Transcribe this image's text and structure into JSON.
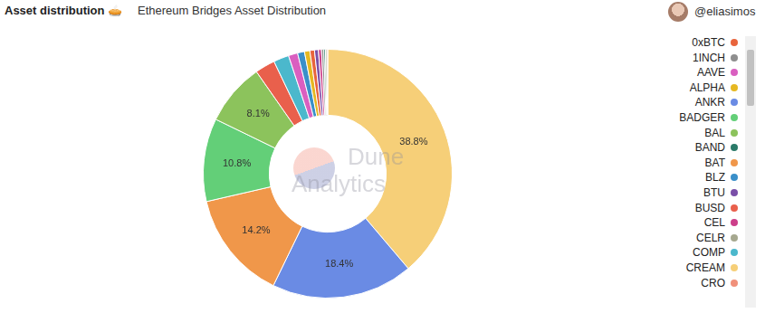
{
  "header": {
    "title": "Asset distribution 🥧",
    "subtitle": "Ethereum Bridges Asset Distribution",
    "author": "@eliasimos"
  },
  "chart_data": {
    "type": "doughnut",
    "annotation": "Dune Analytics",
    "categories": [
      "CREAM",
      "ANKR",
      "BAT",
      "BADGER",
      "BAL",
      "BUSD",
      "COMP",
      "AAVE",
      "BLZ",
      "ALPHA",
      "0xBTC",
      "BTU",
      "CEL",
      "1INCH",
      "BAND",
      "CELR",
      "CRO"
    ],
    "values": [
      38.8,
      18.4,
      14.2,
      10.8,
      8.1,
      2.6,
      2.0,
      1.2,
      0.9,
      0.7,
      0.6,
      0.5,
      0.4,
      0.3,
      0.2,
      0.2,
      0.1
    ],
    "colors": [
      "#f6cf78",
      "#6a8be4",
      "#f0974a",
      "#63cf78",
      "#8cc35c",
      "#e9604c",
      "#4bb8cc",
      "#d95fc0",
      "#3a8fc9",
      "#e6b822",
      "#e8643c",
      "#7a4fa8",
      "#cc3f8a",
      "#8e8e8e",
      "#2a7a68",
      "#a6a88f",
      "#f0907a"
    ],
    "data_labels": true,
    "value_labels": [
      "38.8%",
      "18.4%",
      "14.2%",
      "10.8%",
      "8.1%",
      null,
      null,
      null,
      null,
      null,
      null,
      null,
      null,
      null,
      null,
      null,
      null
    ],
    "legend": "right"
  }
}
